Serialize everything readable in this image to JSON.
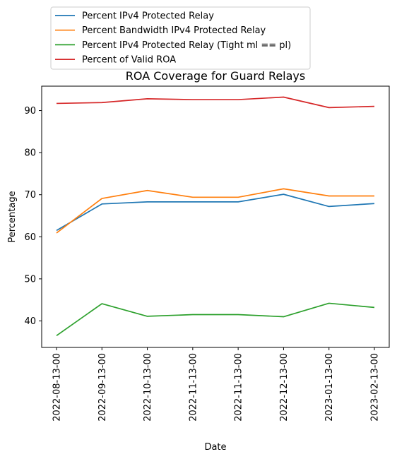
{
  "chart_data": {
    "type": "line",
    "title": "ROA Coverage for Guard Relays",
    "xlabel": "Date",
    "ylabel": "Percentage",
    "ylim": [
      33.7,
      95.8
    ],
    "yticks": [
      40,
      50,
      60,
      70,
      80,
      90
    ],
    "grid": false,
    "legend_position": "top-left, above plot",
    "categories": [
      "2022-08-13-00",
      "2022-09-13-00",
      "2022-10-13-00",
      "2022-11-13-00",
      "2022-11-13-00",
      "2022-12-13-00",
      "2023-01-13-00",
      "2023-02-13-00"
    ],
    "series": [
      {
        "name": "Percent IPv4 Protected Relay",
        "color": "#1f77b4",
        "values": [
          61.5,
          67.8,
          68.3,
          68.3,
          68.3,
          70.1,
          67.2,
          67.9
        ]
      },
      {
        "name": "Percent Bandwidth IPv4 Protected Relay",
        "color": "#ff7f0e",
        "values": [
          60.9,
          69.1,
          71.0,
          69.4,
          69.4,
          71.4,
          69.7,
          69.7
        ]
      },
      {
        "name": "Percent IPv4 Protected Relay (Tight ml == pl)",
        "color": "#2ca02c",
        "values": [
          36.5,
          44.1,
          41.1,
          41.5,
          41.5,
          41.0,
          44.2,
          43.2
        ]
      },
      {
        "name": "Percent of Valid ROA",
        "color": "#d62728",
        "values": [
          91.7,
          91.9,
          92.8,
          92.6,
          92.6,
          93.2,
          90.7,
          91.0
        ]
      }
    ]
  }
}
